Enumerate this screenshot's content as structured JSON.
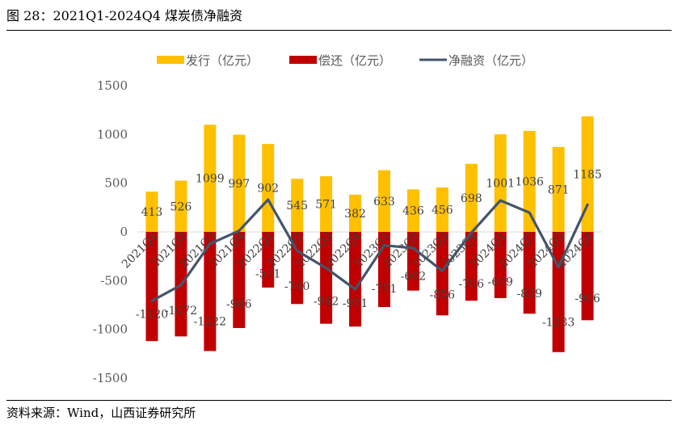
{
  "figure_title": "图 28：2021Q1-2024Q4 煤炭债净融资",
  "source": "资料来源：Wind，山西证券研究所",
  "colors": {
    "issuance": "#FFC000",
    "repayment": "#C00000",
    "net": "#44546A"
  },
  "chart_data": {
    "type": "bar",
    "title": "",
    "xlabel": "",
    "ylabel": "",
    "ylim": [
      -1500,
      1500
    ],
    "yticks": [
      1500,
      1000,
      500,
      0,
      -500,
      -1000,
      -1500
    ],
    "grid": false,
    "legend_position": "top",
    "categories": [
      "2021Q1",
      "2021Q2",
      "2021Q3",
      "2021Q4",
      "2022Q1",
      "2022Q2",
      "2022Q3",
      "2022Q4",
      "2023Q1",
      "2023Q2",
      "2023Q3",
      "2023Q4",
      "2024Q1",
      "2024Q2",
      "2024Q3",
      "2024Q4"
    ],
    "series": [
      {
        "name": "发行（亿元）",
        "type": "bar",
        "values": [
          413,
          526,
          1099,
          997,
          902,
          545,
          571,
          382,
          633,
          436,
          456,
          698,
          1001,
          1036,
          871,
          1185
        ]
      },
      {
        "name": "偿还（亿元）",
        "type": "bar",
        "values": [
          -1120,
          -1072,
          -1222,
          -986,
          -571,
          -740,
          -942,
          -971,
          -771,
          -602,
          -856,
          -706,
          -679,
          -839,
          -1233,
          -906
        ]
      },
      {
        "name": "净融资（亿元）",
        "type": "line",
        "values": [
          -707,
          -546,
          -123,
          11,
          331,
          -195,
          -371,
          -589,
          -138,
          -166,
          -400,
          -8,
          322,
          197,
          -362,
          279
        ]
      }
    ]
  }
}
